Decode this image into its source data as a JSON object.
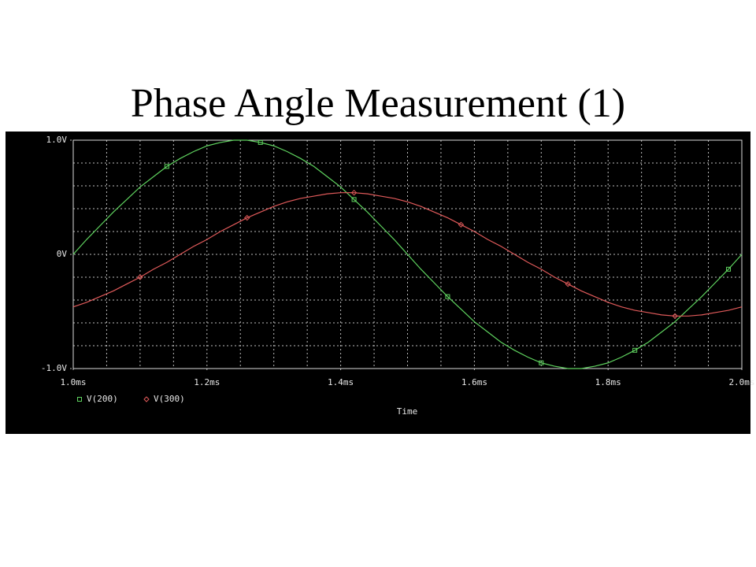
{
  "chart_data": {
    "type": "line",
    "title": "Phase Angle Measurement (1)",
    "x_label": "Time",
    "x": [
      1.0,
      1.02,
      1.04,
      1.06,
      1.08,
      1.1,
      1.12,
      1.14,
      1.16,
      1.18,
      1.2,
      1.22,
      1.24,
      1.26,
      1.28,
      1.3,
      1.32,
      1.34,
      1.36,
      1.38,
      1.4,
      1.42,
      1.44,
      1.46,
      1.48,
      1.5,
      1.52,
      1.54,
      1.56,
      1.58,
      1.6,
      1.62,
      1.64,
      1.66,
      1.68,
      1.7,
      1.72,
      1.74,
      1.76,
      1.78,
      1.8,
      1.82,
      1.84,
      1.86,
      1.88,
      1.9,
      1.92,
      1.94,
      1.96,
      1.98,
      2.0
    ],
    "series": [
      {
        "name": "V(200)",
        "color": "#5fd35f",
        "marker": "square",
        "values": [
          0,
          0.13,
          0.25,
          0.37,
          0.48,
          0.59,
          0.68,
          0.77,
          0.84,
          0.9,
          0.95,
          0.98,
          1.0,
          1.0,
          0.98,
          0.95,
          0.9,
          0.84,
          0.77,
          0.68,
          0.59,
          0.48,
          0.37,
          0.25,
          0.13,
          0,
          -0.13,
          -0.25,
          -0.37,
          -0.48,
          -0.59,
          -0.68,
          -0.77,
          -0.84,
          -0.9,
          -0.95,
          -0.98,
          -1.0,
          -1.0,
          -0.98,
          -0.95,
          -0.9,
          -0.84,
          -0.77,
          -0.68,
          -0.59,
          -0.48,
          -0.37,
          -0.25,
          -0.13,
          0
        ]
      },
      {
        "name": "V(300)",
        "color": "#e05a5a",
        "marker": "diamond",
        "values": [
          -0.46,
          -0.42,
          -0.37,
          -0.32,
          -0.26,
          -0.2,
          -0.13,
          -0.07,
          0,
          0.07,
          0.13,
          0.2,
          0.26,
          0.32,
          0.37,
          0.42,
          0.46,
          0.49,
          0.51,
          0.53,
          0.54,
          0.54,
          0.53,
          0.51,
          0.49,
          0.46,
          0.42,
          0.37,
          0.32,
          0.26,
          0.2,
          0.13,
          0.07,
          0,
          -0.07,
          -0.13,
          -0.2,
          -0.26,
          -0.32,
          -0.37,
          -0.42,
          -0.46,
          -0.49,
          -0.51,
          -0.53,
          -0.54,
          -0.54,
          -0.53,
          -0.51,
          -0.49,
          -0.46
        ]
      }
    ],
    "xlim": [
      1.0,
      2.0
    ],
    "xticks": [
      {
        "value": 1.0,
        "label": "1.0ms"
      },
      {
        "value": 1.2,
        "label": "1.2ms"
      },
      {
        "value": 1.4,
        "label": "1.4ms"
      },
      {
        "value": 1.6,
        "label": "1.6ms"
      },
      {
        "value": 1.8,
        "label": "1.8ms"
      },
      {
        "value": 2.0,
        "label": "2.0ms"
      }
    ],
    "ylim": [
      -1,
      1
    ],
    "yticks": [
      {
        "value": -1,
        "label": "-1.0V"
      },
      {
        "value": 0,
        "label": "0V"
      },
      {
        "value": 1,
        "label": "1.0V"
      }
    ],
    "grid": true
  }
}
